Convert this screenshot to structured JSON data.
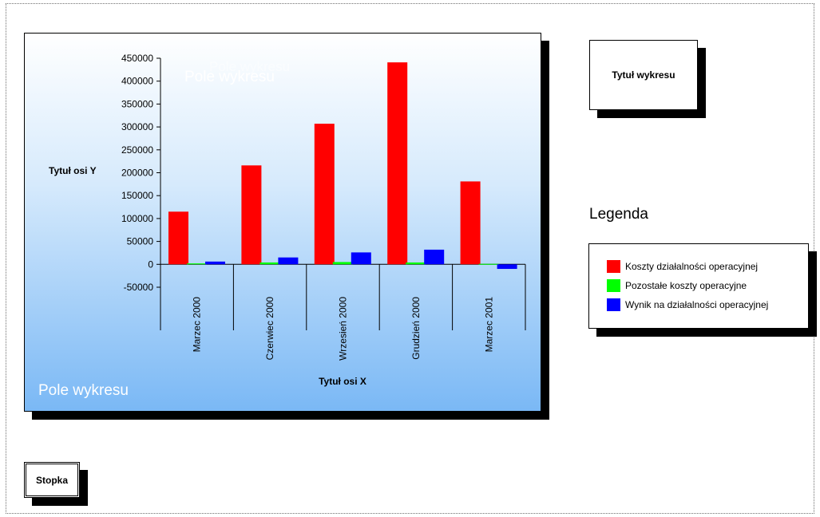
{
  "chart_data": {
    "type": "bar",
    "title": "",
    "xlabel": "Tytuł osi X",
    "ylabel": "Tytuł osi Y",
    "ylim": [
      -50000,
      450000
    ],
    "yticks": [
      450000,
      400000,
      350000,
      300000,
      250000,
      200000,
      150000,
      100000,
      50000,
      0,
      -50000
    ],
    "categories": [
      "Marzec 2000",
      "Czerwiec 2000",
      "Wrzesień 2000",
      "Grudzień 2000",
      "Marzec 2001"
    ],
    "series": [
      {
        "name": "Koszty działalności operacyjnej",
        "color": "#ff0000",
        "values": [
          115000,
          216000,
          307000,
          441000,
          181000
        ]
      },
      {
        "name": "Pozostałe koszty operacyjne",
        "color": "#00ff00",
        "values": [
          2000,
          4000,
          5000,
          4000,
          1000
        ]
      },
      {
        "name": "Wynik na działalności operacyjnej",
        "color": "#0000ff",
        "values": [
          6000,
          15000,
          26000,
          32000,
          -10000
        ]
      }
    ],
    "grid": false,
    "legend_position": "right"
  },
  "labels": {
    "plot_area_title": "Pole wykresu",
    "plot_area_title_ghost": "Pole wykresu",
    "plot_area_label": "Pole wykresu",
    "chart_title": "Tytuł wykresu",
    "legend_heading": "Legenda",
    "footer": "Stopka"
  }
}
